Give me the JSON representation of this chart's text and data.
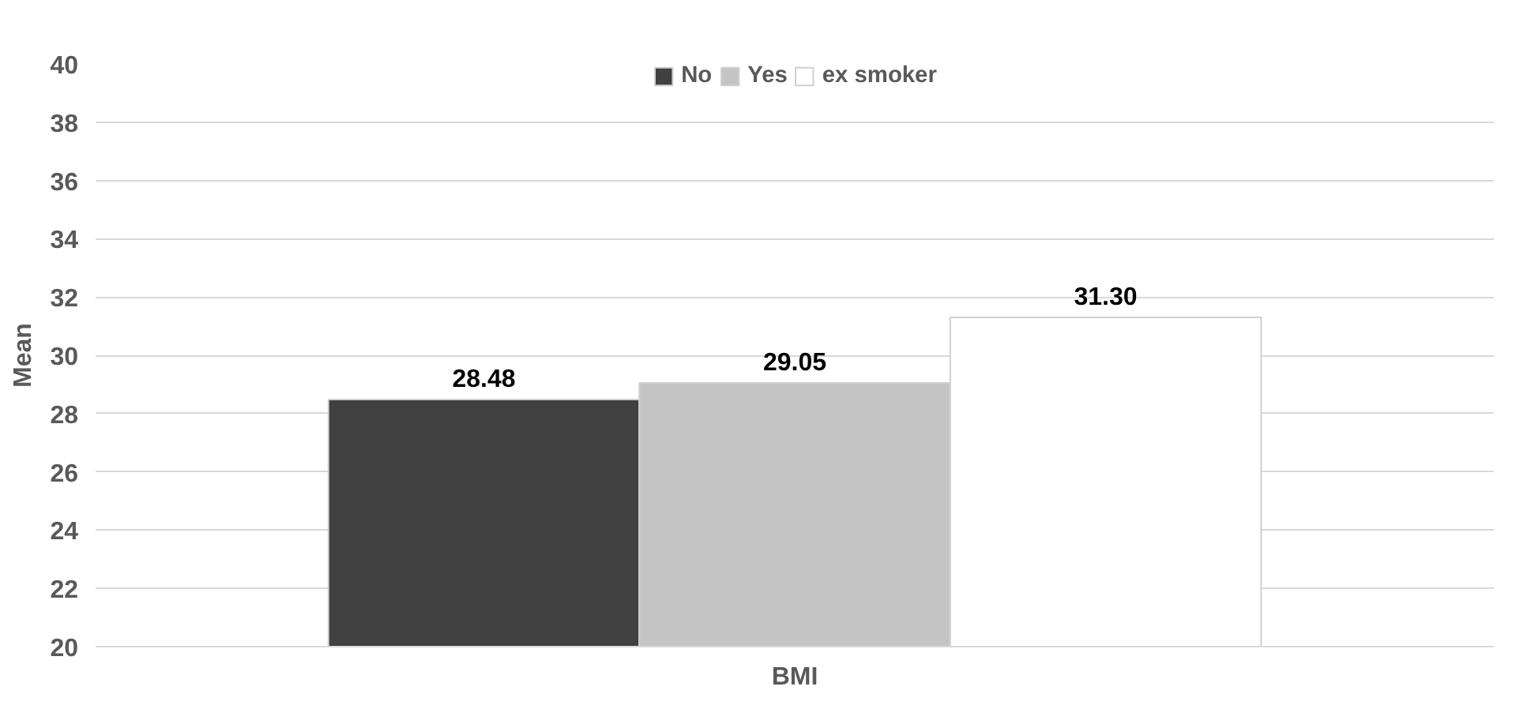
{
  "chart_data": {
    "type": "bar",
    "categories": [
      "BMI"
    ],
    "ylabel": "Mean",
    "series": [
      {
        "name": "No",
        "color": "#404040",
        "values": [
          28.48
        ],
        "value_labels": [
          "28.48"
        ]
      },
      {
        "name": "Yes",
        "color": "#c4c4c4",
        "values": [
          29.05
        ],
        "value_labels": [
          "29.05"
        ]
      },
      {
        "name": "ex smoker",
        "color": "#ffffff",
        "values": [
          31.3
        ],
        "value_labels": [
          "31.30"
        ]
      }
    ],
    "ylim": [
      20,
      40
    ],
    "yticks": [
      20,
      22,
      24,
      26,
      28,
      30,
      32,
      34,
      36,
      38,
      40
    ],
    "grid": "y",
    "legend": "top"
  }
}
